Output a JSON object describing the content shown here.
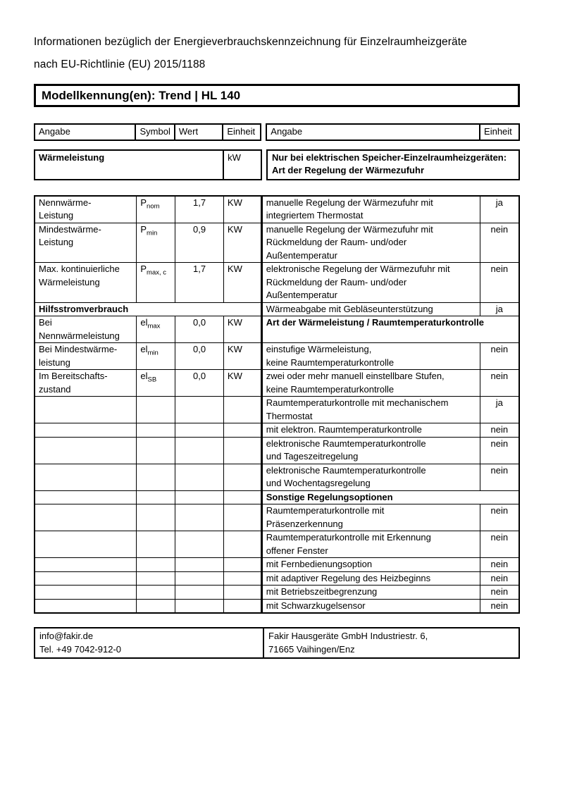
{
  "page": {
    "title": "Informationen bezüglich der Energieverbrauchskennzeichnung für Einzelraumheizgeräte\nnach EU-Richtlinie (EU) 2015/1188",
    "model_label": "Modellkennung(en): Trend | HL 140"
  },
  "header_row": {
    "col1": "Angabe",
    "col2": "Symbol",
    "col3": "Wert",
    "col4": "Einheit",
    "col5": "Angabe",
    "col6": "Einheit"
  },
  "section": {
    "left_title": "Wärmeleistung",
    "left_unit": "kW",
    "right_title": "Nur bei elektrischen Speicher-Einzelraumheizgeräten:\nArt der Regelung der Wärmezufuhr"
  },
  "table": {
    "rows": [
      {
        "left": {
          "type": "cells",
          "label": "Nennwärme-\nLeistung",
          "symbol": {
            "base": "P",
            "sub": "nom"
          },
          "value": "1,7",
          "unit": "KW"
        },
        "right": {
          "type": "pair",
          "text": "manuelle Regelung der Wärmezufuhr mit\nintegriertem Thermostat",
          "answer": "ja"
        }
      },
      {
        "left": {
          "type": "cells",
          "label": "Mindestwärme-\nLeistung",
          "symbol": {
            "base": "P",
            "sub": "min"
          },
          "value": "0,9",
          "unit": "KW"
        },
        "right": {
          "type": "pair",
          "text": "manuelle Regelung der Wärmezufuhr mit\nRückmeldung der Raum- und/oder\nAußentemperatur",
          "answer": "nein"
        }
      },
      {
        "left": {
          "type": "cells",
          "label": "Max. kontinuierliche\nWärmeleistung",
          "symbol": {
            "base": "P",
            "sub": "max, c"
          },
          "value": "1,7",
          "unit": "KW"
        },
        "right": {
          "type": "pair",
          "text": "elektronische Regelung der Wärmezufuhr mit\nRückmeldung der Raum- und/oder\nAußentemperatur",
          "answer": "nein"
        }
      },
      {
        "left": {
          "type": "span",
          "label": "Hilfsstromverbrauch"
        },
        "right": {
          "type": "pair",
          "text": "Wärmeabgabe mit Gebläseunterstützung",
          "answer": "ja"
        }
      },
      {
        "left": {
          "type": "cells",
          "label": "Bei\nNennwärmeleistung",
          "symbol": {
            "base": "el",
            "sub": "max"
          },
          "value": "0,0",
          "unit": "KW"
        },
        "right": {
          "type": "span",
          "text": "Art der Wärmeleistung / Raumtemperaturkontrolle"
        }
      },
      {
        "left": {
          "type": "cells",
          "label": "Bei Mindestwärme-\nleistung",
          "symbol": {
            "base": "el",
            "sub": "min"
          },
          "value": "0,0",
          "unit": "KW"
        },
        "right": {
          "type": "pair",
          "text": "einstufige Wärmeleistung,\nkeine Raumtemperaturkontrolle",
          "answer": "nein"
        }
      },
      {
        "left": {
          "type": "cells",
          "label": "Im Bereitschafts-\nzustand",
          "symbol": {
            "base": "el",
            "sub": "SB"
          },
          "value": "0,0",
          "unit": "KW"
        },
        "right": {
          "type": "pair",
          "text": "zwei oder mehr manuell einstellbare Stufen,\nkeine Raumtemperaturkontrolle",
          "answer": "nein"
        }
      },
      {
        "left": {
          "type": "empty"
        },
        "right": {
          "type": "pair",
          "text": "Raumtemperaturkontrolle mit mechanischem\nThermostat",
          "answer": "ja"
        }
      },
      {
        "left": {
          "type": "empty"
        },
        "right": {
          "type": "pair",
          "text": "mit elektron. Raumtemperaturkontrolle",
          "answer": "nein"
        }
      },
      {
        "left": {
          "type": "empty"
        },
        "right": {
          "type": "pair",
          "text": "elektronische Raumtemperaturkontrolle\nund Tageszeitregelung",
          "answer": "nein"
        }
      },
      {
        "left": {
          "type": "empty"
        },
        "right": {
          "type": "pair",
          "text": "elektronische Raumtemperaturkontrolle\nund Wochentagsregelung",
          "answer": "nein"
        }
      },
      {
        "left": {
          "type": "empty"
        },
        "right": {
          "type": "span",
          "text": "Sonstige Regelungsoptionen"
        }
      },
      {
        "left": {
          "type": "empty"
        },
        "right": {
          "type": "pair",
          "text": "Raumtemperaturkontrolle mit\nPräsenzerkennung",
          "answer": "nein"
        }
      },
      {
        "left": {
          "type": "empty"
        },
        "right": {
          "type": "pair",
          "text": "Raumtemperaturkontrolle mit Erkennung\noffener Fenster",
          "answer": "nein"
        }
      },
      {
        "left": {
          "type": "empty"
        },
        "right": {
          "type": "pair",
          "text": "mit Fernbedienungsoption",
          "answer": "nein"
        }
      },
      {
        "left": {
          "type": "empty"
        },
        "right": {
          "type": "pair",
          "text": "mit adaptiver Regelung des Heizbeginns",
          "answer": "nein"
        }
      },
      {
        "left": {
          "type": "empty"
        },
        "right": {
          "type": "pair",
          "text": "mit Betriebszeitbegrenzung",
          "answer": "nein"
        }
      },
      {
        "left": {
          "type": "empty"
        },
        "right": {
          "type": "pair",
          "text": "mit Schwarzkugelsensor",
          "answer": "nein"
        }
      }
    ]
  },
  "footer": {
    "left": "info@fakir.de\nTel. +49 7042-912-0",
    "right": "Fakir Hausgeräte GmbH Industriestr. 6,\n71665 Vaihingen/Enz"
  }
}
